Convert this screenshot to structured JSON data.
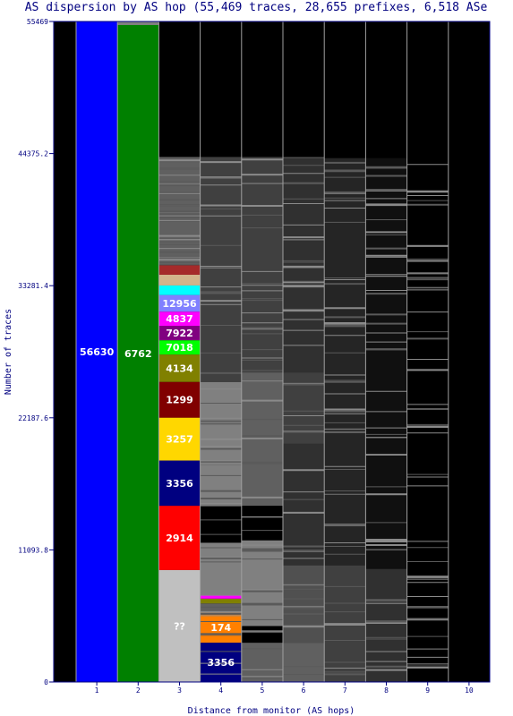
{
  "chart_data": {
    "type": "bar",
    "title": "AS dispersion by AS hop (55,469 traces, 28,655 prefixes, 6,518 ASe",
    "xlabel": "Distance from monitor (AS hops)",
    "ylabel": "Number of traces",
    "ylim": [
      0,
      55469
    ],
    "y_ticks": [
      "0",
      "11093.8",
      "22187.6",
      "33281.4",
      "44375.2",
      "55469"
    ],
    "categories": [
      "1",
      "2",
      "3",
      "4",
      "5",
      "6",
      "7",
      "8",
      "9",
      "10"
    ],
    "colors": {
      "background": "#000000",
      "unlabeled": "#808080",
      "unknown": "#c0c0c0",
      "axis_text": "#000080",
      "separator": "#a0a0a0"
    },
    "stacks": [
      {
        "hop": "1",
        "segments": [
          {
            "label": "56630",
            "from": 0,
            "to": 55469,
            "color": "#0000ff"
          }
        ]
      },
      {
        "hop": "2",
        "segments": [
          {
            "label": "6762",
            "from": 0,
            "to": 55169,
            "color": "#008000"
          },
          {
            "label": "",
            "from": 55169,
            "to": 55469,
            "color": "#808080"
          }
        ]
      },
      {
        "hop": "3",
        "segments": [
          {
            "label": "??",
            "from": 0,
            "to": 9400,
            "color": "#c0c0c0"
          },
          {
            "label": "2914",
            "from": 9400,
            "to": 14800,
            "color": "#ff0000"
          },
          {
            "label": "3356",
            "from": 14800,
            "to": 18600,
            "color": "#000080"
          },
          {
            "label": "3257",
            "from": 18600,
            "to": 22200,
            "color": "#ffd700"
          },
          {
            "label": "1299",
            "from": 22200,
            "to": 25200,
            "color": "#800000"
          },
          {
            "label": "4134",
            "from": 25200,
            "to": 27500,
            "color": "#808000"
          },
          {
            "label": "7018",
            "from": 27500,
            "to": 28700,
            "color": "#00ff00"
          },
          {
            "label": "7922",
            "from": 28700,
            "to": 29900,
            "color": "#800080"
          },
          {
            "label": "4837",
            "from": 29900,
            "to": 31100,
            "color": "#ff00ff"
          },
          {
            "label": "12956",
            "from": 31100,
            "to": 32500,
            "color": "#8080ff"
          },
          {
            "label": "",
            "from": 32500,
            "to": 33300,
            "color": "#00ffff"
          },
          {
            "label": "",
            "from": 33300,
            "to": 34200,
            "color": "#d2b48c"
          },
          {
            "label": "",
            "from": 34200,
            "to": 35000,
            "color": "#a52a2a"
          },
          {
            "label": "",
            "from": 35000,
            "to": 44100,
            "color": "#606060"
          },
          {
            "label": "",
            "from": 44100,
            "to": 55469,
            "color": "#000000"
          }
        ]
      },
      {
        "hop": "4",
        "segments": [
          {
            "label": "3356",
            "from": 0,
            "to": 3300,
            "color": "#000080"
          },
          {
            "label": "174",
            "from": 3300,
            "to": 5900,
            "color": "#ff8000"
          },
          {
            "label": "",
            "from": 5900,
            "to": 6600,
            "color": "#606060"
          },
          {
            "label": "",
            "from": 6600,
            "to": 7000,
            "color": "#808000"
          },
          {
            "label": "",
            "from": 7000,
            "to": 7300,
            "color": "#ff00ff"
          },
          {
            "label": "",
            "from": 7300,
            "to": 11700,
            "color": "#808080"
          },
          {
            "label": "",
            "from": 11700,
            "to": 14800,
            "color": "#000000"
          },
          {
            "label": "",
            "from": 14800,
            "to": 18200,
            "color": "#808080"
          },
          {
            "label": "",
            "from": 18200,
            "to": 21600,
            "color": "#808080"
          },
          {
            "label": "",
            "from": 21600,
            "to": 25200,
            "color": "#808080"
          },
          {
            "label": "",
            "from": 25200,
            "to": 44100,
            "color": "#404040"
          },
          {
            "label": "",
            "from": 44100,
            "to": 55469,
            "color": "#000000"
          }
        ]
      },
      {
        "hop": "5",
        "segments": [
          {
            "label": "",
            "from": 0,
            "to": 3300,
            "color": "#606060"
          },
          {
            "label": "",
            "from": 3300,
            "to": 4700,
            "color": "#000000"
          },
          {
            "label": "",
            "from": 4700,
            "to": 11900,
            "color": "#808080"
          },
          {
            "label": "",
            "from": 11900,
            "to": 14800,
            "color": "#000000"
          },
          {
            "label": "",
            "from": 14800,
            "to": 26000,
            "color": "#606060"
          },
          {
            "label": "",
            "from": 26000,
            "to": 44100,
            "color": "#404040"
          },
          {
            "label": "",
            "from": 44100,
            "to": 55469,
            "color": "#000000"
          }
        ]
      },
      {
        "hop": "6",
        "segments": [
          {
            "label": "",
            "from": 0,
            "to": 3300,
            "color": "#606060"
          },
          {
            "label": "",
            "from": 3300,
            "to": 9800,
            "color": "#505050"
          },
          {
            "label": "",
            "from": 9800,
            "to": 20000,
            "color": "#303030"
          },
          {
            "label": "",
            "from": 20000,
            "to": 26000,
            "color": "#404040"
          },
          {
            "label": "",
            "from": 26000,
            "to": 44100,
            "color": "#303030"
          },
          {
            "label": "",
            "from": 44100,
            "to": 55469,
            "color": "#000000"
          }
        ]
      },
      {
        "hop": "7",
        "segments": [
          {
            "label": "",
            "from": 0,
            "to": 9800,
            "color": "#404040"
          },
          {
            "label": "",
            "from": 9800,
            "to": 44000,
            "color": "#252525"
          },
          {
            "label": "",
            "from": 44000,
            "to": 55469,
            "color": "#000000"
          }
        ]
      },
      {
        "hop": "8",
        "segments": [
          {
            "label": "",
            "from": 0,
            "to": 9500,
            "color": "#303030"
          },
          {
            "label": "",
            "from": 9500,
            "to": 44000,
            "color": "#101010"
          },
          {
            "label": "",
            "from": 44000,
            "to": 55469,
            "color": "#000000"
          }
        ]
      },
      {
        "hop": "9",
        "segments": [
          {
            "label": "",
            "from": 0,
            "to": 55469,
            "color": "#000000"
          }
        ]
      },
      {
        "hop": "10",
        "segments": [
          {
            "label": "",
            "from": 0,
            "to": 55469,
            "color": "#000000"
          }
        ]
      }
    ]
  }
}
